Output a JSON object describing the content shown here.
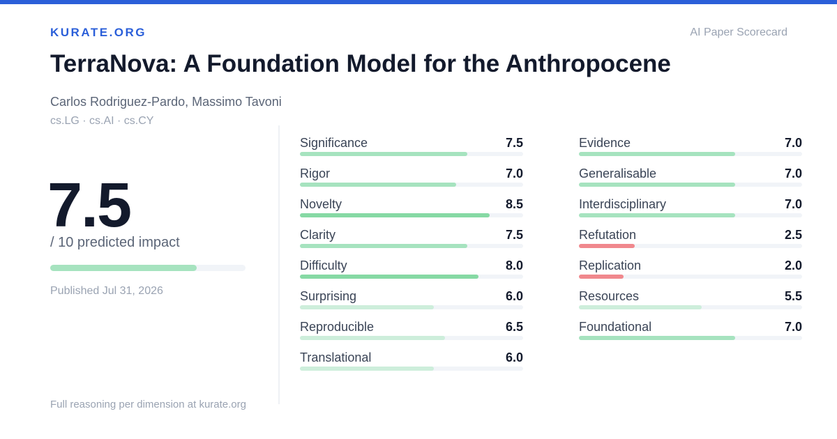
{
  "header": {
    "brand": "KURATE.ORG",
    "tag": "AI Paper Scorecard"
  },
  "paper": {
    "title": "TerraNova: A Foundation Model for the Anthropocene",
    "authors": "Carlos Rodriguez-Pardo, Massimo Tavoni",
    "categories": "cs.LG · cs.AI · cs.CY",
    "published": "Published Jul 31, 2026"
  },
  "score": {
    "value": 7.5,
    "label": "7.5",
    "color": "#a6e3bf"
  },
  "score_scale": {
    "value": 10,
    "label": "/ 10 predicted impact"
  },
  "columns": [
    [
      {
        "name": "Significance",
        "value": 7.5,
        "label": "7.5",
        "color": "#a6e3bf"
      },
      {
        "name": "Rigor",
        "value": 7,
        "label": "7.0",
        "color": "#a6e3bf"
      },
      {
        "name": "Novelty",
        "value": 8.5,
        "label": "8.5",
        "color": "#86d9a4"
      },
      {
        "name": "Clarity",
        "value": 7.5,
        "label": "7.5",
        "color": "#a6e3bf"
      },
      {
        "name": "Difficulty",
        "value": 8,
        "label": "8.0",
        "color": "#86d9a4"
      },
      {
        "name": "Surprising",
        "value": 6,
        "label": "6.0",
        "color": "#cdeedb"
      },
      {
        "name": "Reproducible",
        "value": 6.5,
        "label": "6.5",
        "color": "#cdeedb"
      },
      {
        "name": "Translational",
        "value": 6,
        "label": "6.0",
        "color": "#cdeedb"
      }
    ],
    [
      {
        "name": "Evidence",
        "value": 7,
        "label": "7.0",
        "color": "#a6e3bf"
      },
      {
        "name": "Generalisable",
        "value": 7,
        "label": "7.0",
        "color": "#a6e3bf"
      },
      {
        "name": "Interdisciplinary",
        "value": 7,
        "label": "7.0",
        "color": "#a6e3bf"
      },
      {
        "name": "Refutation",
        "value": 2.5,
        "label": "2.5",
        "color": "#f0888d"
      },
      {
        "name": "Replication",
        "value": 2,
        "label": "2.0",
        "color": "#f0888d"
      },
      {
        "name": "Resources",
        "value": 5.5,
        "label": "5.5",
        "color": "#cdeedb"
      },
      {
        "name": "Foundational",
        "value": 7,
        "label": "7.0",
        "color": "#a6e3bf"
      }
    ]
  ],
  "footer": "Full reasoning per dimension at kurate.org"
}
